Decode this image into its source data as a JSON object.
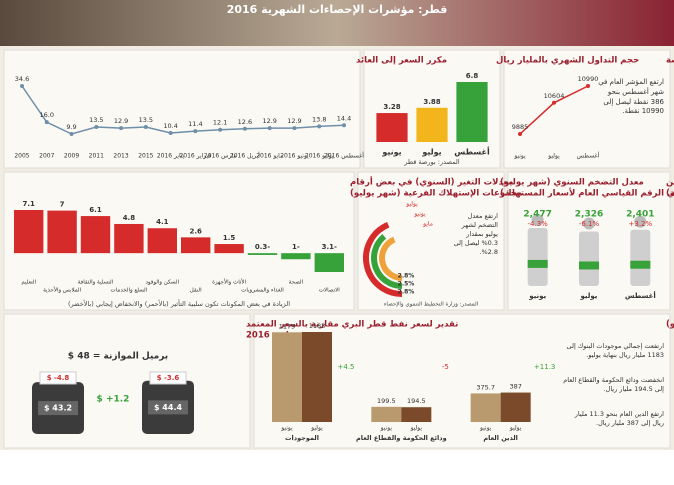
{
  "header": {
    "title": "قطر: مؤشرات الإحصاءات الشهرية 2016"
  },
  "chart_data": [
    {
      "type": "line",
      "title": "مكرر السعر إلى العائد",
      "color": "#6f8fa8",
      "categories": [
        "2005",
        "2007",
        "2009",
        "2011",
        "2013",
        "2015",
        "يناير 2016",
        "فبراير 2016",
        "مارس 2016",
        "أبريل 2016",
        "مايو 2016",
        "يونيو 2016",
        "يوليو 2016",
        "أغسطس 2016"
      ],
      "values": [
        34.6,
        16.0,
        9.9,
        13.5,
        12.9,
        13.5,
        10.4,
        11.4,
        12.1,
        12.6,
        12.9,
        12.9,
        13.8,
        14.4
      ],
      "value_labels": [
        "34.6",
        "16.0",
        "9.9",
        "13.5",
        "12.9",
        "13.5",
        "10.4",
        "11.4",
        "12.1",
        "12.6",
        "12.9",
        "12.9",
        "13.8",
        "14.4"
      ]
    },
    {
      "type": "bar",
      "title": "حجم التداول الشهري بالمليار ريال",
      "categories": [
        "يونيو",
        "يوليو",
        "أغسطس"
      ],
      "values": [
        3.28,
        3.88,
        6.8
      ],
      "colors": [
        "#d52b2b",
        "#f2b51c",
        "#38a23a"
      ],
      "source": "المصدر: بورصة قطر"
    },
    {
      "type": "line",
      "title": "المؤشر العام للبورصة",
      "color": "#d52b2b",
      "categories": [
        "يونيو",
        "يوليو",
        "أغسطس"
      ],
      "values": [
        9885,
        10604,
        10990
      ],
      "note": "ارتفع المؤشر العام في شهر أغسطس بنحو 386 نقطة ليصل إلى 10990 نقطة."
    },
    {
      "type": "bar",
      "title": "معدلات التغير (السنوي) في بعض أرقام",
      "subtitle": "مجموعات الإستهلاك الفرعية (شهر يوليو)",
      "categories": [
        "التعليم",
        "الملابس والأحذية",
        "التسلية والثقافة",
        "السلع والخدمات",
        "السكن والوقود",
        "النقل",
        "الأثاث والأجهزة",
        "الغذاء والمشروبات",
        "الصحة",
        "الاتصالات"
      ],
      "values": [
        7.1,
        7,
        6.1,
        4.8,
        4.1,
        2.6,
        1.5,
        -0.3,
        -1,
        -3.1
      ],
      "positive_color": "#d52b2b",
      "negative_color": "#38a23a",
      "note": "الزيادة في بعض المكونات تكون سلبية التأثير (بالأحمر) والانخفاض إيجابي (بالأخضر)"
    },
    {
      "type": "donut",
      "title": "معدل التضخم السنوي (شهر يوليو)",
      "subtitle": "(أي معدل التغير في الرقم القياسي العام لأسعار المستهلك)",
      "categories": [
        "يوليو",
        "يونيو",
        "مايو"
      ],
      "values": [
        2.8,
        2.5,
        2.8
      ],
      "value_labels": [
        "2.8%",
        "2.5%",
        "2.8%"
      ],
      "colors": [
        "#d52b2b",
        "#38a23a",
        "#f0a23a"
      ],
      "note": "ارتفع معدل التضخم لشهر يوليو بمقدار 0.3% ليصل إلى 2.8%.",
      "source": "المصدر: وزارة التخطيط التنموي والإحصاء"
    },
    {
      "type": "pictogram",
      "title": "تطور السكان المسجلين المتواجدين",
      "subtitle": "داخل البلاد (بالمليون نسمة)",
      "categories": [
        "يونيو",
        "يوليو",
        "أغسطس"
      ],
      "values": [
        2477,
        2326,
        2401
      ],
      "value_labels": [
        "2,477",
        "2,326",
        "2,401"
      ],
      "changes": [
        -4.3,
        -6.1,
        3.2
      ],
      "change_labels": [
        "4.3%-",
        "6.1%-",
        "3.2%+"
      ],
      "color": "#38a23a"
    },
    {
      "type": "barrels",
      "title": "تقدير لسعر نفط قطر البري مقارنة بالسعر المعتمد",
      "subtitle": "في موازنة 2016",
      "budget_label": "برميل الموازنة = 48 $",
      "values": [
        43.2,
        44.4
      ],
      "value_labels": [
        "$ 43.2",
        "$ 44.4"
      ],
      "diffs": [
        -4.8,
        -3.6
      ],
      "diff_labels": [
        "$ -4.8",
        "$ -3.6"
      ],
      "change": 1.2,
      "change_label": "$ +1.2"
    },
    {
      "type": "grouped_bar",
      "title": "تطور الميزانية المجمعة للبنوك بالمليار ريال (شهر يوليو)",
      "categories": [
        "الموجودات",
        "ودائع الحكومة والقطاع العام",
        "الدين العام"
      ],
      "series": [
        {
          "name": "يونيو",
          "color": "#b89a6e",
          "values": [
            1179,
            199.5,
            375.7
          ]
        },
        {
          "name": "يوليو",
          "color": "#7a4a2a",
          "values": [
            1183,
            194.5,
            387
          ]
        }
      ],
      "changes": [
        4.5,
        -5,
        11.3
      ],
      "change_labels": [
        "4.5+",
        "5-",
        "11.3+"
      ],
      "notes": [
        "ارتفعت إجمالي موجودات البنوك إلى 1183 مليار ريال بنهاية يوليو.",
        "انخفضت ودائع الحكومة والقطاع العام إلى 194.5 مليار ريال.",
        "ارتفع الدين العام بنحو 11.3 مليار ريال إلى 387 مليار ريال."
      ]
    }
  ]
}
